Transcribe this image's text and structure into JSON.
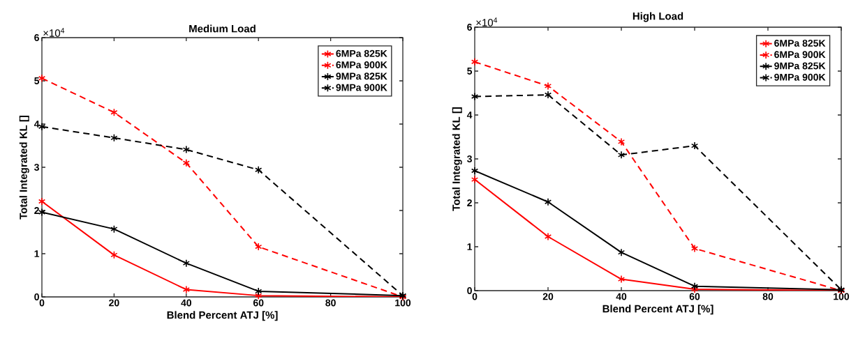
{
  "chart_data": [
    {
      "type": "line",
      "title": "Medium Load",
      "xlabel": "Blend Percent ATJ [%]",
      "ylabel": "Total Integrated KL []",
      "annotations": [
        "×10$^{4}$"
      ],
      "x": [
        0,
        20,
        40,
        60,
        100
      ],
      "xlim": [
        0,
        100
      ],
      "xticks": [
        0,
        20,
        40,
        60,
        80,
        100
      ],
      "ylim": [
        0,
        6
      ],
      "yticks": [
        0,
        1,
        2,
        3,
        4,
        5,
        6
      ],
      "marker": "cross",
      "legend": "top right",
      "series": [
        {
          "name": "6MPa 825K",
          "color": "#ff0000",
          "line_style": "solid",
          "values": [
            2.21,
            0.97,
            0.17,
            0.03,
            0
          ]
        },
        {
          "name": "6MPa 900K",
          "color": "#ff0000",
          "line_style": "dashed",
          "values": [
            5.06,
            4.27,
            3.1,
            1.16,
            0
          ]
        },
        {
          "name": "9MPa 825K",
          "color": "#000000",
          "line_style": "solid",
          "values": [
            1.96,
            1.57,
            0.78,
            0.13,
            0.03
          ]
        },
        {
          "name": "9MPa 900K",
          "color": "#000000",
          "line_style": "dashed",
          "values": [
            3.94,
            3.68,
            3.41,
            2.94,
            0.03
          ]
        }
      ]
    },
    {
      "type": "line",
      "title": "High Load",
      "xlabel": "Blend Percent ATJ [%]",
      "ylabel": "Total Integrated KL []",
      "annotations": [
        "×10$^{4}$"
      ],
      "x": [
        0,
        20,
        40,
        60,
        100
      ],
      "xlim": [
        0,
        100
      ],
      "xticks": [
        0,
        20,
        40,
        60,
        80,
        100
      ],
      "ylim": [
        0,
        6
      ],
      "yticks": [
        0,
        1,
        2,
        3,
        4,
        5,
        6
      ],
      "marker": "cross",
      "legend": "top right",
      "series": [
        {
          "name": "6MPa 825K",
          "color": "#ff0000",
          "line_style": "solid",
          "values": [
            2.53,
            1.23,
            0.26,
            0.03,
            0
          ]
        },
        {
          "name": "6MPa 900K",
          "color": "#ff0000",
          "line_style": "dashed",
          "values": [
            5.21,
            4.66,
            3.39,
            0.96,
            0
          ]
        },
        {
          "name": "9MPa 825K",
          "color": "#000000",
          "line_style": "solid",
          "values": [
            2.73,
            2.02,
            0.87,
            0.1,
            0.02
          ]
        },
        {
          "name": "9MPa 900K",
          "color": "#000000",
          "line_style": "dashed",
          "values": [
            4.42,
            4.46,
            3.09,
            3.3,
            0.02
          ]
        }
      ]
    }
  ]
}
